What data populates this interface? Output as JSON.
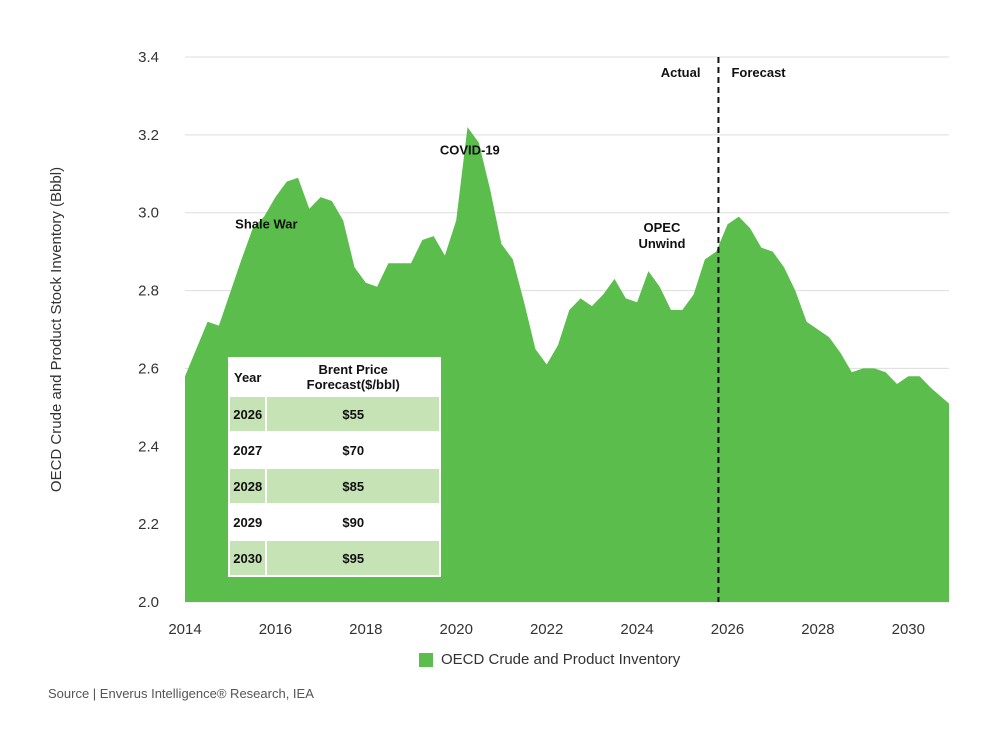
{
  "chart_data": {
    "type": "area",
    "ylabel": "OECD Crude and Product Stock Inventory (Bbbl)",
    "xlabel": "",
    "ylim": [
      2.0,
      3.4
    ],
    "xlim": [
      2014,
      2030.9
    ],
    "yticks": [
      "2.0",
      "2.2",
      "2.4",
      "2.6",
      "2.8",
      "3.0",
      "3.2",
      "3.4"
    ],
    "xticks": [
      "2014",
      "2016",
      "2018",
      "2020",
      "2022",
      "2024",
      "2026",
      "2028",
      "2030"
    ],
    "grid": "horizontal",
    "legend_position": "bottom",
    "colors": {
      "area": "#5bbd4c",
      "grid": "#dddddd",
      "divider": "#111111"
    },
    "series": [
      {
        "name": "OECD Crude and Product Inventory",
        "x": [
          2014.0,
          2014.5,
          2014.75,
          2015.25,
          2015.5,
          2015.75,
          2016.0,
          2016.25,
          2016.5,
          2016.75,
          2017.0,
          2017.25,
          2017.5,
          2017.75,
          2018.0,
          2018.25,
          2018.5,
          2018.75,
          2019.0,
          2019.25,
          2019.5,
          2019.75,
          2020.0,
          2020.25,
          2020.5,
          2020.75,
          2021.0,
          2021.25,
          2021.5,
          2021.75,
          2022.0,
          2022.25,
          2022.5,
          2022.75,
          2023.0,
          2023.25,
          2023.5,
          2023.75,
          2024.0,
          2024.25,
          2024.5,
          2024.75,
          2025.0,
          2025.25,
          2025.5,
          2025.75,
          2026.0,
          2026.25,
          2026.5,
          2026.75,
          2027.0,
          2027.25,
          2027.5,
          2027.75,
          2028.0,
          2028.25,
          2028.5,
          2028.75,
          2029.0,
          2029.25,
          2029.5,
          2029.75,
          2030.0,
          2030.25,
          2030.5,
          2030.9
        ],
        "values": [
          2.58,
          2.72,
          2.71,
          2.88,
          2.96,
          2.99,
          3.04,
          3.08,
          3.09,
          3.01,
          3.04,
          3.03,
          2.98,
          2.86,
          2.82,
          2.81,
          2.87,
          2.87,
          2.87,
          2.93,
          2.94,
          2.89,
          2.98,
          3.22,
          3.18,
          3.06,
          2.92,
          2.88,
          2.77,
          2.65,
          2.61,
          2.66,
          2.75,
          2.78,
          2.76,
          2.79,
          2.83,
          2.78,
          2.77,
          2.85,
          2.81,
          2.75,
          2.75,
          2.79,
          2.88,
          2.9,
          2.97,
          2.99,
          2.96,
          2.91,
          2.9,
          2.86,
          2.8,
          2.72,
          2.7,
          2.68,
          2.64,
          2.59,
          2.6,
          2.6,
          2.59,
          2.56,
          2.58,
          2.58,
          2.55,
          2.51
        ]
      }
    ],
    "divider": {
      "x": 2025.8,
      "left_label": "Actual",
      "right_label": "Forecast"
    },
    "annotations": [
      {
        "lines": [
          "Shale War"
        ],
        "x": 2015.8,
        "y": 2.96
      },
      {
        "lines": [
          "COVID-19"
        ],
        "x": 2020.3,
        "y": 3.15
      },
      {
        "lines": [
          "OPEC",
          "Unwind"
        ],
        "x": 2024.55,
        "y": 2.95
      }
    ]
  },
  "price_table": {
    "headers": [
      "Year",
      "Brent Price Forecast($/bbl)"
    ],
    "rows": [
      {
        "year": "2026",
        "price": "$55"
      },
      {
        "year": "2027",
        "price": "$70"
      },
      {
        "year": "2028",
        "price": "$85"
      },
      {
        "year": "2029",
        "price": "$90"
      },
      {
        "year": "2030",
        "price": "$95"
      }
    ]
  },
  "legend": {
    "label": "OECD Crude and Product Inventory"
  },
  "source": "Source | Enverus Intelligence® Research, IEA"
}
